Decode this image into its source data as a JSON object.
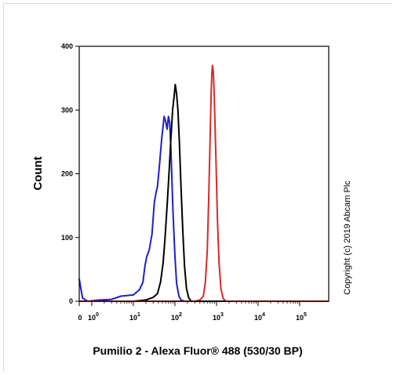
{
  "chart_data": {
    "type": "line",
    "title": "",
    "xlabel": "Pumilio 2 - Alexa Fluor® 488 (530/30 BP)",
    "ylabel": "Count",
    "x_scale": "log",
    "xlim": [
      0.5,
      500000
    ],
    "ylim": [
      0,
      400
    ],
    "yticks": [
      0,
      100,
      200,
      300,
      400
    ],
    "xticks": [
      {
        "value": 0.5,
        "base": "0",
        "exp": ""
      },
      {
        "value": 1,
        "base": "10",
        "exp": "0"
      },
      {
        "value": 10,
        "base": "10",
        "exp": "1"
      },
      {
        "value": 100,
        "base": "10",
        "exp": "2"
      },
      {
        "value": 1000,
        "base": "10",
        "exp": "3"
      },
      {
        "value": 10000,
        "base": "10",
        "exp": "4"
      },
      {
        "value": 100000,
        "base": "10",
        "exp": "5"
      }
    ],
    "grid": false,
    "series": [
      {
        "color": "#1f1fc8",
        "points": [
          [
            0.5,
            35
          ],
          [
            0.6,
            5
          ],
          [
            0.8,
            0
          ],
          [
            1.5,
            2
          ],
          [
            3,
            3
          ],
          [
            5,
            8
          ],
          [
            10,
            10
          ],
          [
            14,
            18
          ],
          [
            17,
            30
          ],
          [
            19,
            55
          ],
          [
            21,
            70
          ],
          [
            24,
            80
          ],
          [
            28,
            105
          ],
          [
            32,
            155
          ],
          [
            35,
            170
          ],
          [
            38,
            180
          ],
          [
            42,
            210
          ],
          [
            48,
            255
          ],
          [
            52,
            275
          ],
          [
            55,
            290
          ],
          [
            60,
            282
          ],
          [
            65,
            270
          ],
          [
            70,
            290
          ],
          [
            75,
            280
          ],
          [
            80,
            240
          ],
          [
            90,
            140
          ],
          [
            100,
            70
          ],
          [
            110,
            28
          ],
          [
            125,
            8
          ],
          [
            140,
            2
          ],
          [
            170,
            0
          ],
          [
            1000,
            0
          ],
          [
            500000,
            0
          ]
        ]
      },
      {
        "color": "#000000",
        "points": [
          [
            0.5,
            0
          ],
          [
            10,
            0
          ],
          [
            20,
            2
          ],
          [
            30,
            6
          ],
          [
            38,
            12
          ],
          [
            45,
            30
          ],
          [
            52,
            60
          ],
          [
            58,
            100
          ],
          [
            65,
            150
          ],
          [
            72,
            200
          ],
          [
            80,
            255
          ],
          [
            88,
            300
          ],
          [
            95,
            320
          ],
          [
            102,
            340
          ],
          [
            110,
            325
          ],
          [
            118,
            300
          ],
          [
            128,
            250
          ],
          [
            140,
            180
          ],
          [
            155,
            110
          ],
          [
            170,
            55
          ],
          [
            190,
            20
          ],
          [
            215,
            5
          ],
          [
            250,
            0
          ],
          [
            500000,
            0
          ]
        ]
      },
      {
        "color": "#d42a2a",
        "points": [
          [
            0.5,
            0
          ],
          [
            300,
            0
          ],
          [
            400,
            2
          ],
          [
            480,
            8
          ],
          [
            540,
            30
          ],
          [
            600,
            80
          ],
          [
            650,
            160
          ],
          [
            700,
            250
          ],
          [
            740,
            320
          ],
          [
            770,
            355
          ],
          [
            800,
            370
          ],
          [
            840,
            360
          ],
          [
            880,
            325
          ],
          [
            920,
            280
          ],
          [
            980,
            210
          ],
          [
            1050,
            130
          ],
          [
            1150,
            60
          ],
          [
            1280,
            20
          ],
          [
            1450,
            4
          ],
          [
            1700,
            0
          ],
          [
            500000,
            0
          ]
        ]
      }
    ]
  },
  "copyright": "Copyright (c) 2019 Abcam Plc"
}
